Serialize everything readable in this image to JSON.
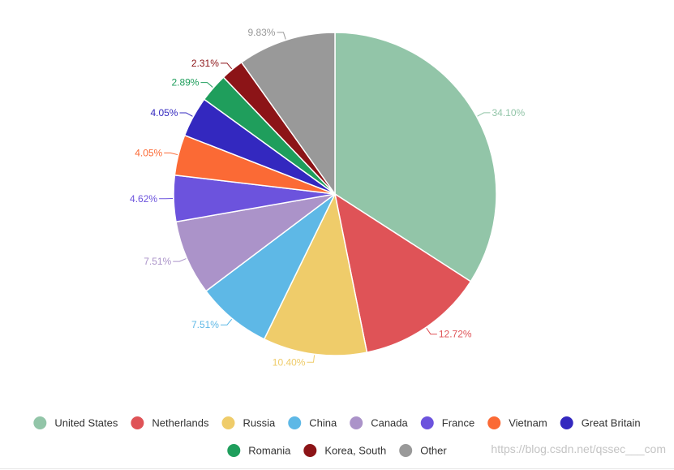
{
  "chart_data": {
    "type": "pie",
    "start_angle_deg": 0,
    "direction": "clockwise",
    "slices": [
      {
        "name": "United States",
        "value": 34.1,
        "label": "34.10%",
        "color": "#92c5a8"
      },
      {
        "name": "Netherlands",
        "value": 12.72,
        "label": "12.72%",
        "color": "#df5357"
      },
      {
        "name": "Russia",
        "value": 10.4,
        "label": "10.40%",
        "color": "#efcc6a"
      },
      {
        "name": "China",
        "value": 7.51,
        "label": "7.51%",
        "color": "#5eb8e6"
      },
      {
        "name": "Canada",
        "value": 7.51,
        "label": "7.51%",
        "color": "#ab93c9"
      },
      {
        "name": "France",
        "value": 4.62,
        "label": "4.62%",
        "color": "#6c53dd"
      },
      {
        "name": "Vietnam",
        "value": 4.05,
        "label": "4.05%",
        "color": "#fb6a35"
      },
      {
        "name": "Great Britain",
        "value": 4.05,
        "label": "4.05%",
        "color": "#3328bf"
      },
      {
        "name": "Romania",
        "value": 2.89,
        "label": "2.89%",
        "color": "#1f9e5c"
      },
      {
        "name": "Korea, South",
        "value": 2.31,
        "label": "2.31%",
        "color": "#8c1417"
      },
      {
        "name": "Other",
        "value": 9.83,
        "label": "9.83%",
        "color": "#999999"
      }
    ],
    "legend_position": "bottom"
  },
  "watermark": "https://blog.csdn.net/qssec___com"
}
